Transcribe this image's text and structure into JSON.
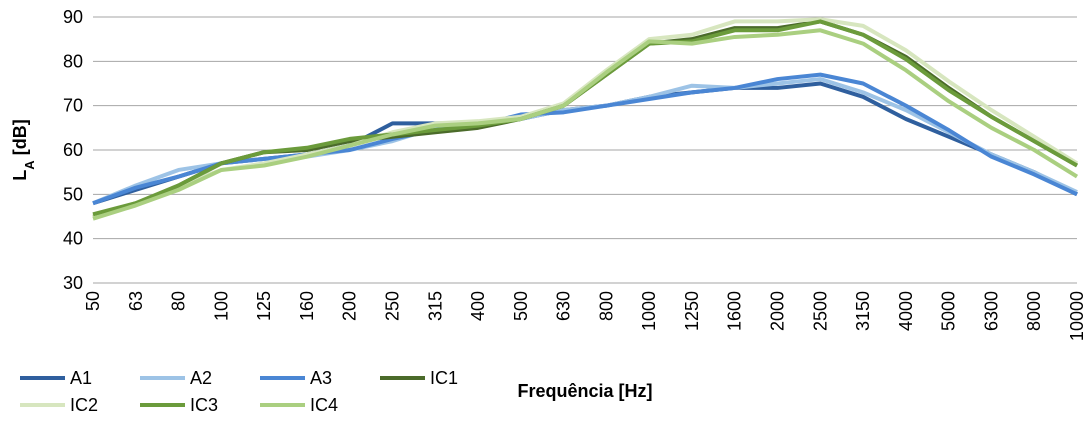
{
  "chart_data": {
    "type": "line",
    "y_label": "L",
    "y_label_sub": "A",
    "y_label_suffix": "[dB]",
    "x_label": "Frequência [Hz]",
    "categories": [
      "50",
      "63",
      "80",
      "100",
      "125",
      "160",
      "200",
      "250",
      "315",
      "400",
      "500",
      "630",
      "800",
      "1000",
      "1250",
      "1600",
      "2000",
      "2500",
      "3150",
      "4000",
      "5000",
      "6300",
      "8000",
      "10000"
    ],
    "series": [
      {
        "name": "A1",
        "color": "#2f5f9e",
        "values": [
          48,
          51,
          54,
          57,
          58,
          59,
          61,
          66,
          66,
          66,
          67,
          69,
          70,
          72,
          73,
          74,
          74,
          75,
          72,
          67,
          63,
          59,
          55,
          50
        ]
      },
      {
        "name": "A2",
        "color": "#9dc3e6",
        "values": [
          48,
          52,
          55.5,
          57,
          58,
          58.5,
          60,
          62,
          65,
          66,
          67,
          69,
          70,
          72,
          74.5,
          74,
          75,
          76,
          73,
          69,
          64,
          59,
          55,
          50.5
        ]
      },
      {
        "name": "A3",
        "color": "#4a86d4",
        "values": [
          48,
          51.5,
          54,
          57,
          58,
          59,
          60,
          62.5,
          64.5,
          65.5,
          68,
          68.5,
          70,
          71.5,
          73,
          74,
          76,
          77,
          75,
          70,
          64.5,
          58.5,
          54.5,
          50
        ]
      },
      {
        "name": "IC1",
        "color": "#4b6b2a",
        "values": [
          45,
          48,
          52,
          57,
          59.5,
          60,
          62,
          63,
          64,
          65,
          67,
          70,
          77,
          84,
          85,
          87.5,
          87.5,
          89,
          86,
          81,
          74,
          67.5,
          62,
          56.5
        ]
      },
      {
        "name": "IC2",
        "color": "#d7e6bf",
        "values": [
          45,
          48,
          52,
          55.5,
          57,
          59,
          61,
          64,
          66,
          66.5,
          67.5,
          70.5,
          78,
          85,
          86,
          89,
          89,
          89.5,
          88,
          82.5,
          75.5,
          69,
          63,
          57
        ]
      },
      {
        "name": "IC3",
        "color": "#6b9b3b",
        "values": [
          45.5,
          48,
          52,
          57,
          59.5,
          60.5,
          62.5,
          63.5,
          64.5,
          65.5,
          67,
          70,
          77,
          84,
          84.5,
          87,
          87,
          89,
          86,
          80.5,
          73.5,
          67.5,
          62,
          56.5
        ]
      },
      {
        "name": "IC4",
        "color": "#aacf80",
        "values": [
          44.5,
          47.5,
          51,
          55.5,
          56.5,
          58.5,
          61,
          63.5,
          65.5,
          66,
          67,
          70,
          77.5,
          84.5,
          84,
          85.5,
          86,
          87,
          84,
          78,
          71,
          65,
          60,
          54
        ]
      }
    ],
    "ylim": [
      30,
      90
    ],
    "yticks": [
      30,
      40,
      50,
      60,
      70,
      80,
      90
    ],
    "grid": true,
    "legend": "bottom-left"
  }
}
